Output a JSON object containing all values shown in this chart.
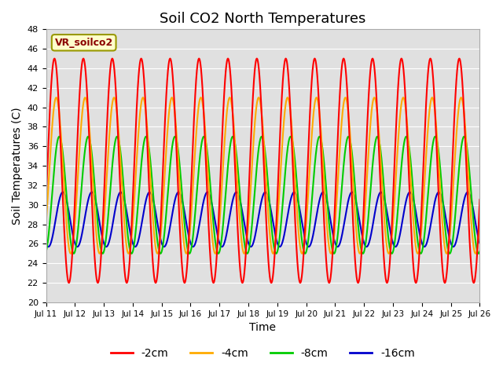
{
  "title": "Soil CO2 North Temperatures",
  "xlabel": "Time",
  "ylabel": "Soil Temperatures (C)",
  "ylim": [
    20,
    48
  ],
  "xlim": [
    0,
    360
  ],
  "bg_color": "#e0e0e0",
  "annotation_text": "VR_soilco2",
  "series_order": [
    "-2cm",
    "-4cm",
    "-8cm",
    "-16cm"
  ],
  "series": {
    "-2cm": {
      "color": "#ff0000",
      "amplitude": 11.5,
      "mean": 33.5,
      "phase_hours": 1.0
    },
    "-4cm": {
      "color": "#ffaa00",
      "amplitude": 8.0,
      "mean": 33.0,
      "phase_hours": 2.5
    },
    "-8cm": {
      "color": "#00cc00",
      "amplitude": 6.0,
      "mean": 31.0,
      "phase_hours": 5.0
    },
    "-16cm": {
      "color": "#0000cc",
      "amplitude": 2.8,
      "mean": 28.5,
      "phase_hours": 8.0
    }
  },
  "xtick_positions": [
    0,
    24,
    48,
    72,
    96,
    120,
    144,
    168,
    192,
    216,
    240,
    264,
    288,
    312,
    336,
    360
  ],
  "xtick_labels": [
    "Jul 11",
    "Jul 12",
    "Jul 13",
    "Jul 14",
    "Jul 15",
    "Jul 16",
    "Jul 17",
    "Jul 18",
    "Jul 19",
    "Jul 20",
    "Jul 21",
    "Jul 22",
    "Jul 23",
    "Jul 24",
    "Jul 25",
    "Jul 26"
  ],
  "legend_labels": [
    "-2cm",
    "-4cm",
    "-8cm",
    "-16cm"
  ],
  "legend_colors": [
    "#ff0000",
    "#ffaa00",
    "#00cc00",
    "#0000cc"
  ],
  "grid_color": "#ffffff",
  "linewidth": 1.5
}
